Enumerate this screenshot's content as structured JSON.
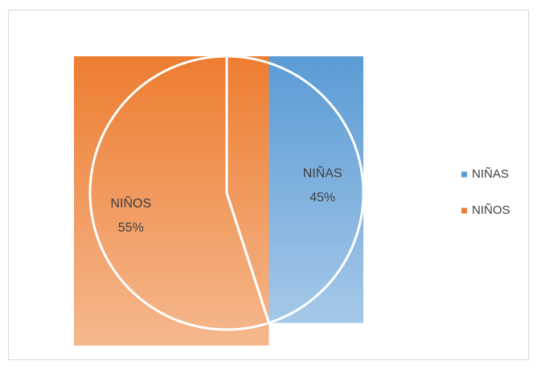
{
  "chart_data": {
    "type": "pie",
    "categories": [
      "NIÑAS",
      "NIÑOS"
    ],
    "values": [
      45,
      55
    ],
    "value_labels": [
      "45%",
      "55%"
    ],
    "colors": [
      "#5b9bd5",
      "#ed7d31"
    ],
    "legend": "right"
  }
}
